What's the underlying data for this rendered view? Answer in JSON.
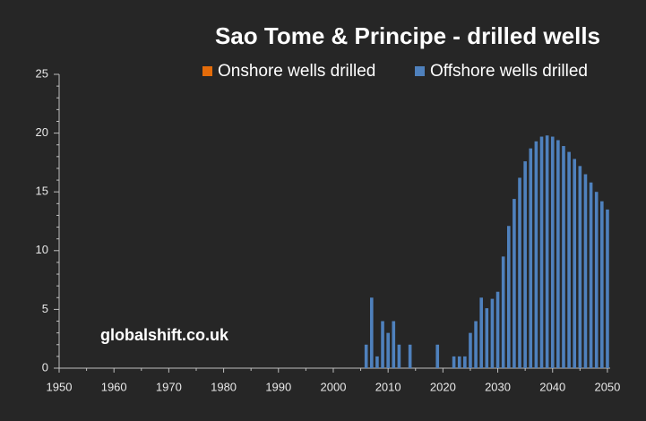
{
  "chart_data": {
    "type": "bar",
    "stacked": true,
    "title": "Sao Tome & Principe - drilled wells",
    "annotation": "globalshift.co.uk",
    "x": [
      2006,
      2007,
      2008,
      2009,
      2010,
      2011,
      2012,
      2014,
      2019,
      2022,
      2023,
      2024,
      2025,
      2026,
      2027,
      2028,
      2029,
      2030,
      2031,
      2032,
      2033,
      2034,
      2035,
      2036,
      2037,
      2038,
      2039,
      2040,
      2041,
      2042,
      2043,
      2044,
      2045,
      2046,
      2047,
      2048,
      2049,
      2050
    ],
    "series": [
      {
        "name": "Onshore wells drilled",
        "color": "#e46c0a",
        "values": [
          0,
          0,
          0,
          0,
          0,
          0,
          0,
          0,
          0,
          0,
          0,
          0,
          0,
          0,
          0,
          0,
          0,
          0,
          0,
          0,
          0,
          0,
          0,
          0,
          0,
          0,
          0,
          0,
          0,
          0,
          0,
          0,
          0,
          0,
          0,
          0,
          0,
          0
        ]
      },
      {
        "name": "Offshore wells drilled",
        "color": "#4f81bd",
        "values": [
          2,
          6,
          1,
          4,
          3,
          4,
          2,
          2,
          2,
          1,
          1,
          1,
          3,
          4,
          6,
          5.1,
          5.9,
          6.5,
          9.5,
          12.1,
          14.4,
          16.2,
          17.6,
          18.7,
          19.3,
          19.7,
          19.8,
          19.7,
          19.4,
          18.9,
          18.4,
          17.8,
          17.2,
          16.5,
          15.8,
          15.0,
          14.2,
          13.5
        ]
      }
    ],
    "xlim": [
      1950,
      2050.5
    ],
    "xticks": [
      1950,
      1960,
      1970,
      1980,
      1990,
      2000,
      2010,
      2020,
      2030,
      2040,
      2050
    ],
    "ylim": [
      0,
      25
    ],
    "yticks": [
      0,
      5,
      10,
      15,
      20,
      25
    ],
    "legend": "top-right"
  }
}
